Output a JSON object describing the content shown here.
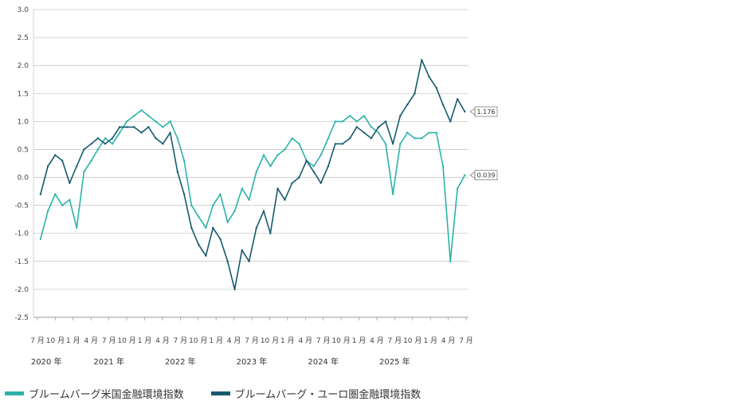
{
  "chart_data": {
    "type": "line",
    "ylim": [
      -2.5,
      3.0
    ],
    "y_ticks": [
      "3.0",
      "2.5",
      "2.0",
      "1.5",
      "1.0",
      "0.5",
      "0.0",
      "-0.5",
      "-1.0",
      "-1.5",
      "-2.0",
      "-2.5"
    ],
    "x_month_ticks": [
      "7 月",
      "10 月",
      "1 月",
      "4 月",
      "7 月",
      "10 月",
      "1 月",
      "4 月",
      "7 月",
      "10 月",
      "1 月",
      "4 月",
      "7 月",
      "10 月",
      "1 月",
      "4 月",
      "7 月",
      "10 月",
      "1 月",
      "4 月",
      "7 月",
      "10 月",
      "1 月",
      "4 月",
      "7 月"
    ],
    "x_year_labels": [
      "2020 年",
      "2021 年",
      "2022 年",
      "2023 年",
      "2024 年",
      "2025 年"
    ],
    "grid": true,
    "legend_placement": "bottom",
    "series": [
      {
        "name": "ブルームバーグ米国金融環境指数",
        "color": "#2bb3a8",
        "last_value_label": "0.039",
        "x": [
          "2020-07",
          "2020-08",
          "2020-09",
          "2020-10",
          "2020-11",
          "2020-12",
          "2021-01",
          "2021-02",
          "2021-03",
          "2021-04",
          "2021-05",
          "2021-06",
          "2021-07",
          "2021-08",
          "2021-09",
          "2021-10",
          "2021-11",
          "2021-12",
          "2022-01",
          "2022-02",
          "2022-03",
          "2022-04",
          "2022-05",
          "2022-06",
          "2022-07",
          "2022-08",
          "2022-09",
          "2022-10",
          "2022-11",
          "2022-12",
          "2023-01",
          "2023-02",
          "2023-03",
          "2023-04",
          "2023-05",
          "2023-06",
          "2023-07",
          "2023-08",
          "2023-09",
          "2023-10",
          "2023-11",
          "2023-12",
          "2024-01",
          "2024-02",
          "2024-03",
          "2024-04",
          "2024-05",
          "2024-06",
          "2024-07",
          "2024-08",
          "2024-09",
          "2024-10",
          "2024-11",
          "2024-12",
          "2025-01",
          "2025-02",
          "2025-03",
          "2025-04",
          "2025-05",
          "2025-06"
        ],
        "values": [
          -1.1,
          -0.6,
          -0.3,
          -0.5,
          -0.4,
          -0.9,
          0.1,
          0.3,
          0.5,
          0.7,
          0.6,
          0.8,
          1.0,
          1.1,
          1.2,
          1.1,
          1.0,
          0.9,
          1.0,
          0.7,
          0.3,
          -0.5,
          -0.7,
          -0.9,
          -0.5,
          -0.3,
          -0.8,
          -0.6,
          -0.2,
          -0.4,
          0.1,
          0.4,
          0.2,
          0.4,
          0.5,
          0.7,
          0.6,
          0.3,
          0.2,
          0.4,
          0.7,
          1.0,
          1.0,
          1.1,
          1.0,
          1.1,
          0.9,
          0.8,
          0.6,
          -0.3,
          0.6,
          0.8,
          0.7,
          0.7,
          0.8,
          0.8,
          0.2,
          -1.5,
          -0.2,
          0.04
        ]
      },
      {
        "name": "ブルームバーグ・ユーロ圏金融環境指数",
        "color": "#155a6e",
        "last_value_label": "1.176",
        "x": [
          "2020-07",
          "2020-08",
          "2020-09",
          "2020-10",
          "2020-11",
          "2020-12",
          "2021-01",
          "2021-02",
          "2021-03",
          "2021-04",
          "2021-05",
          "2021-06",
          "2021-07",
          "2021-08",
          "2021-09",
          "2021-10",
          "2021-11",
          "2021-12",
          "2022-01",
          "2022-02",
          "2022-03",
          "2022-04",
          "2022-05",
          "2022-06",
          "2022-07",
          "2022-08",
          "2022-09",
          "2022-10",
          "2022-11",
          "2022-12",
          "2023-01",
          "2023-02",
          "2023-03",
          "2023-04",
          "2023-05",
          "2023-06",
          "2023-07",
          "2023-08",
          "2023-09",
          "2023-10",
          "2023-11",
          "2023-12",
          "2024-01",
          "2024-02",
          "2024-03",
          "2024-04",
          "2024-05",
          "2024-06",
          "2024-07",
          "2024-08",
          "2024-09",
          "2024-10",
          "2024-11",
          "2024-12",
          "2025-01",
          "2025-02",
          "2025-03",
          "2025-04",
          "2025-05",
          "2025-06"
        ],
        "values": [
          -0.3,
          0.2,
          0.4,
          0.3,
          -0.1,
          0.2,
          0.5,
          0.6,
          0.7,
          0.6,
          0.7,
          0.9,
          0.9,
          0.9,
          0.8,
          0.9,
          0.7,
          0.6,
          0.8,
          0.1,
          -0.3,
          -0.9,
          -1.2,
          -1.4,
          -0.9,
          -1.1,
          -1.5,
          -2.0,
          -1.3,
          -1.5,
          -0.9,
          -0.6,
          -1.0,
          -0.2,
          -0.4,
          -0.1,
          0.0,
          0.3,
          0.1,
          -0.1,
          0.2,
          0.6,
          0.6,
          0.7,
          0.9,
          0.8,
          0.7,
          0.9,
          1.0,
          0.6,
          1.1,
          1.3,
          1.5,
          2.1,
          1.8,
          1.6,
          1.3,
          1.0,
          1.4,
          1.176
        ]
      }
    ]
  }
}
